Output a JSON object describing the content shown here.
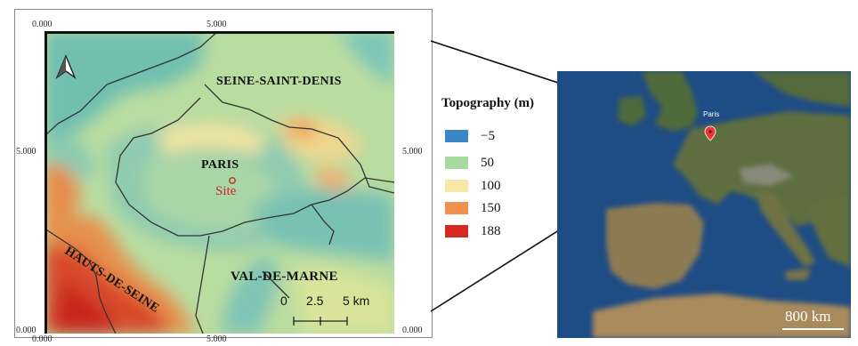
{
  "left_map": {
    "ticks": {
      "top_left": "0.000",
      "top_mid": "5.000",
      "left_mid": "5.000",
      "left_bottom": "0.000",
      "right_mid": "5.000",
      "right_bottom": "0.000",
      "bottom_left": "0.000",
      "bottom_mid": "5.000"
    },
    "labels": {
      "seine_saint_denis": "SEINE-SAINT-DENIS",
      "paris": "PARIS",
      "site": "Site",
      "hauts_de_seine": "HAUTS-DE-SEINE",
      "val_de_marne": "VAL-DE-MARNE"
    },
    "scale_bar": {
      "tick_0": "0",
      "tick_1": "2.5",
      "tick_2": "5 km"
    },
    "north_arrow": "north-arrow-icon"
  },
  "legend": {
    "title": "Topography (m)",
    "items": [
      {
        "label": "−5",
        "color": "#3b86c4"
      },
      {
        "label": "50",
        "color": "#a8d9a0"
      },
      {
        "label": "100",
        "color": "#f6e9a8"
      },
      {
        "label": "150",
        "color": "#f0924d"
      },
      {
        "label": "188",
        "color": "#d42a22"
      }
    ]
  },
  "right_map": {
    "marker_label": "Paris",
    "scale_label": "800 km",
    "colors": {
      "sea": "#1f4f86",
      "land": "#5a6b3c"
    }
  }
}
